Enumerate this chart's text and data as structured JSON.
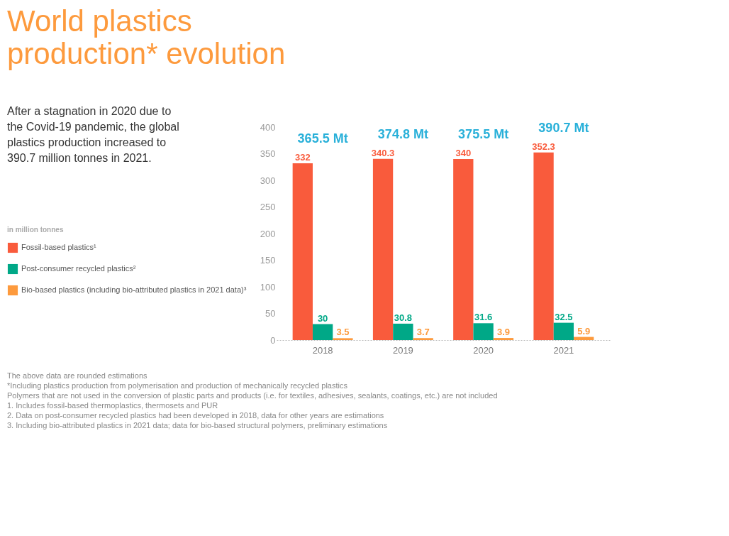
{
  "chart_data": {
    "type": "bar",
    "title": "World plastics production* evolution",
    "subtitle": "After a stagnation in 2020 due to the Covid-19 pandemic, the global plastics production increased to 390.7 million tonnes in 2021.",
    "legend_title": "in million tonnes",
    "categories": [
      "2018",
      "2019",
      "2020",
      "2021"
    ],
    "series": [
      {
        "name": "Fossil-based plastics¹",
        "color": "#f95b3c",
        "values": [
          332,
          340.3,
          340,
          352.3
        ]
      },
      {
        "name": "Post-consumer recycled plastics²",
        "color": "#00a887",
        "values": [
          30,
          30.8,
          31.6,
          32.5
        ]
      },
      {
        "name": "Bio-based plastics (including bio-attributed plastics in 2021 data)³",
        "color": "#fd9a3d",
        "values": [
          3.5,
          3.7,
          3.9,
          5.9
        ]
      }
    ],
    "totals": [
      "365.5 Mt",
      "374.8 Mt",
      "375.5 Mt",
      "390.7 Mt"
    ],
    "ylim": [
      0,
      400
    ],
    "yticks": [
      0,
      50,
      100,
      150,
      200,
      250,
      300,
      350,
      400
    ],
    "data_labels": true,
    "grid": false,
    "legend": "left",
    "annotations": [
      "The above data are rounded estimations",
      "*Including plastics production from polymerisation and production of mechanically recycled plastics",
      "Polymers that are not used in the conversion of plastic parts and products (i.e. for textiles, adhesives, sealants, coatings, etc.) are not included",
      "1. Includes fossil-based thermoplastics, thermosets and PUR",
      "2. Data on post-consumer recycled plastics had been developed in 2018, data for other years are estimations",
      "3. Including bio-attributed plastics in 2021 data; data for bio-based structural polymers, preliminary estimations"
    ]
  }
}
